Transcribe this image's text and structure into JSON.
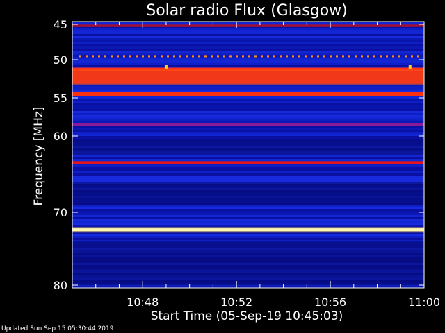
{
  "chart_data": {
    "type": "heatmap",
    "title": "Solar radio Flux (Glasgow)",
    "xlabel": "Start Time (05-Sep-19 10:45:03)",
    "ylabel": "Frequency [MHz]",
    "x_tick_labels": [
      "10:48",
      "10:52",
      "10:56",
      "11:00"
    ],
    "x_tick_minutes": [
      3,
      7,
      11,
      15
    ],
    "x_range_minutes": [
      0,
      15
    ],
    "y_ticks": [
      45,
      50,
      55,
      60,
      70,
      80
    ],
    "y_range": [
      45,
      80
    ],
    "y_scale": "nonlinear",
    "colormap": "black-blue-red-yellow-white",
    "background_level": "blue",
    "bands": [
      {
        "freq": 45.2,
        "level": "red-dark",
        "width": 0.35
      },
      {
        "freq": 49.5,
        "level": "orange-dotted",
        "width": 0.3
      },
      {
        "freq": 51.3,
        "level": "red-bright",
        "width": 0.5
      },
      {
        "freq": 51.9,
        "level": "red",
        "width": 0.8
      },
      {
        "freq": 52.7,
        "level": "red",
        "width": 0.9
      },
      {
        "freq": 54.5,
        "level": "red-bright",
        "width": 0.5
      },
      {
        "freq": 58.5,
        "level": "purple",
        "width": 0.3
      },
      {
        "freq": 63.5,
        "level": "red",
        "width": 0.4
      },
      {
        "freq": 72.4,
        "level": "yellow-white",
        "width": 0.4
      }
    ],
    "point_markers": [
      {
        "minute": 4.0,
        "freq": 51.0
      },
      {
        "minute": 14.4,
        "freq": 51.0
      }
    ]
  },
  "footer": {
    "updated_text": "Updated Sun Sep 15 05:30:44 2019"
  }
}
